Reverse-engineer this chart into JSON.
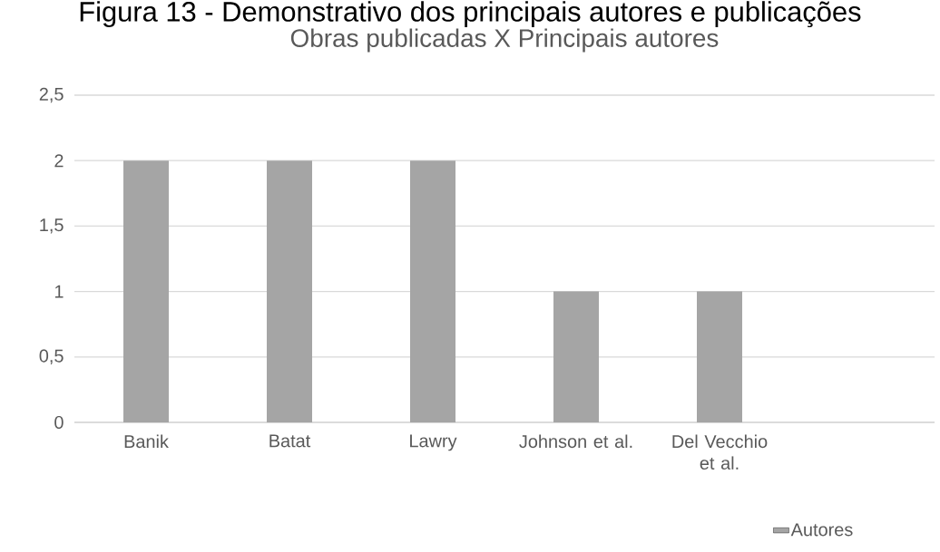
{
  "chart_data": {
    "type": "bar",
    "title": "Obras publicadas X Principais autores",
    "annotations": [
      "Figura 13 - Demonstrativo dos principais autores e publicações"
    ],
    "categories": [
      "Banik",
      "Batat",
      "Lawry",
      "Johnson et al.",
      "Del Vecchio et al.",
      null
    ],
    "series": [
      {
        "name": "Autores",
        "color": "#a5a5a5",
        "values": [
          2,
          2,
          2,
          1,
          1,
          null
        ]
      }
    ],
    "ylim": [
      0,
      2.5
    ],
    "yticks": [
      0,
      {
        "value": 0.5,
        "label": "0,5"
      },
      1,
      {
        "value": 1.5,
        "label": "1,5"
      },
      2,
      {
        "value": 2.5,
        "label": "2,5"
      }
    ],
    "grid": "y",
    "legend": "bottom right"
  }
}
